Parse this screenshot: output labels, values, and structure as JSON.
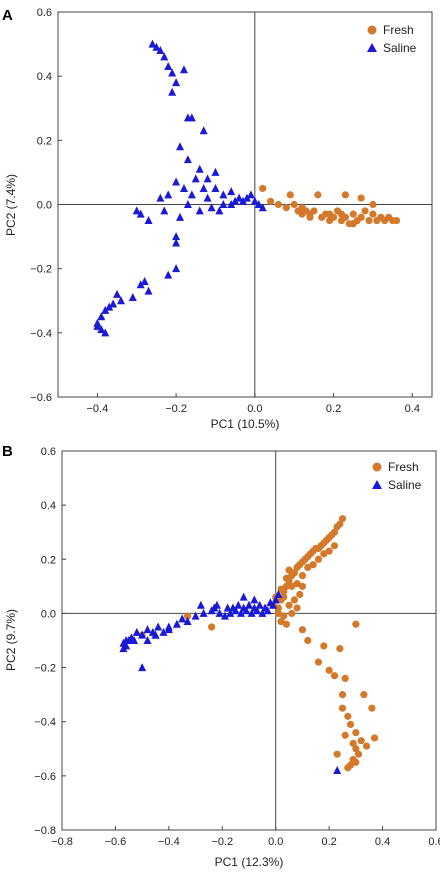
{
  "colors": {
    "fresh": "#d4792a",
    "saline": "#1a1ad6"
  },
  "chart_data": [
    {
      "type": "scatter",
      "panel": "A",
      "xlabel": "PC1 (10.5%)",
      "ylabel": "PC2 (7.4%)",
      "xlim": [
        -0.5,
        0.45
      ],
      "ylim": [
        -0.6,
        0.6
      ],
      "xticks": [
        -0.4,
        -0.2,
        0.0,
        0.2,
        0.4
      ],
      "yticks": [
        -0.6,
        -0.4,
        -0.2,
        0.0,
        0.2,
        0.4,
        0.6
      ],
      "xtick_labels": [
        "−0.4",
        "−0.2",
        "0.0",
        "0.2",
        "0.4"
      ],
      "ytick_labels": [
        "−0.6",
        "−0.4",
        "−0.2",
        "0.0",
        "0.2",
        "0.4",
        "0.6"
      ],
      "legend_position": "top-right",
      "series": [
        {
          "name": "Fresh",
          "marker": "circle",
          "points": [
            [
              0.02,
              0.05
            ],
            [
              0.04,
              0.01
            ],
            [
              0.06,
              0.0
            ],
            [
              0.08,
              -0.01
            ],
            [
              0.09,
              0.03
            ],
            [
              0.1,
              0.0
            ],
            [
              0.11,
              -0.02
            ],
            [
              0.12,
              -0.01
            ],
            [
              0.13,
              -0.02
            ],
            [
              0.14,
              -0.03
            ],
            [
              0.15,
              -0.02
            ],
            [
              0.16,
              0.03
            ],
            [
              0.17,
              -0.04
            ],
            [
              0.18,
              -0.03
            ],
            [
              0.19,
              -0.05
            ],
            [
              0.2,
              -0.04
            ],
            [
              0.21,
              -0.02
            ],
            [
              0.22,
              -0.05
            ],
            [
              0.23,
              -0.04
            ],
            [
              0.24,
              -0.06
            ],
            [
              0.25,
              -0.03
            ],
            [
              0.26,
              -0.05
            ],
            [
              0.27,
              -0.04
            ],
            [
              0.28,
              -0.02
            ],
            [
              0.29,
              -0.05
            ],
            [
              0.3,
              -0.03
            ],
            [
              0.31,
              -0.05
            ],
            [
              0.32,
              -0.04
            ],
            [
              0.33,
              -0.05
            ],
            [
              0.34,
              -0.04
            ],
            [
              0.35,
              -0.05
            ],
            [
              0.36,
              -0.05
            ],
            [
              0.23,
              0.03
            ],
            [
              0.27,
              0.02
            ],
            [
              0.3,
              0.0
            ],
            [
              0.14,
              -0.04
            ],
            [
              0.19,
              -0.03
            ],
            [
              0.25,
              -0.06
            ],
            [
              0.12,
              -0.03
            ],
            [
              0.22,
              -0.03
            ]
          ]
        },
        {
          "name": "Saline",
          "marker": "triangle",
          "points": [
            [
              -0.26,
              0.5
            ],
            [
              -0.25,
              0.49
            ],
            [
              -0.24,
              0.48
            ],
            [
              -0.23,
              0.46
            ],
            [
              -0.22,
              0.43
            ],
            [
              -0.21,
              0.41
            ],
            [
              -0.2,
              0.38
            ],
            [
              -0.18,
              0.42
            ],
            [
              -0.21,
              0.35
            ],
            [
              -0.17,
              0.27
            ],
            [
              -0.16,
              0.27
            ],
            [
              -0.13,
              0.23
            ],
            [
              -0.19,
              0.18
            ],
            [
              -0.17,
              0.14
            ],
            [
              -0.14,
              0.11
            ],
            [
              -0.12,
              0.08
            ],
            [
              -0.1,
              0.1
            ],
            [
              -0.15,
              0.08
            ],
            [
              -0.2,
              0.07
            ],
            [
              -0.24,
              0.02
            ],
            [
              -0.18,
              0.05
            ],
            [
              -0.16,
              0.03
            ],
            [
              -0.12,
              0.02
            ],
            [
              -0.1,
              0.05
            ],
            [
              -0.08,
              0.03
            ],
            [
              -0.06,
              0.04
            ],
            [
              -0.04,
              0.02
            ],
            [
              -0.03,
              0.01
            ],
            [
              -0.02,
              0.02
            ],
            [
              -0.01,
              0.03
            ],
            [
              0.0,
              0.01
            ],
            [
              0.01,
              0.0
            ],
            [
              -0.05,
              0.01
            ],
            [
              -0.08,
              0.0
            ],
            [
              -0.11,
              -0.01
            ],
            [
              -0.14,
              -0.02
            ],
            [
              -0.17,
              0.0
            ],
            [
              -0.19,
              -0.04
            ],
            [
              -0.2,
              -0.1
            ],
            [
              -0.2,
              -0.12
            ],
            [
              -0.23,
              -0.02
            ],
            [
              -0.29,
              -0.03
            ],
            [
              -0.27,
              -0.05
            ],
            [
              -0.3,
              -0.02
            ],
            [
              -0.2,
              -0.2
            ],
            [
              -0.22,
              -0.22
            ],
            [
              -0.27,
              -0.27
            ],
            [
              -0.29,
              -0.25
            ],
            [
              -0.31,
              -0.29
            ],
            [
              -0.34,
              -0.3
            ],
            [
              -0.36,
              -0.31
            ],
            [
              -0.38,
              -0.33
            ],
            [
              -0.39,
              -0.35
            ],
            [
              -0.4,
              -0.37
            ],
            [
              -0.4,
              -0.38
            ],
            [
              -0.39,
              -0.39
            ],
            [
              -0.38,
              -0.4
            ],
            [
              -0.37,
              -0.32
            ],
            [
              -0.35,
              -0.28
            ],
            [
              -0.28,
              -0.24
            ],
            [
              -0.06,
              0.0
            ],
            [
              -0.09,
              -0.02
            ],
            [
              0.02,
              -0.01
            ],
            [
              -0.13,
              0.05
            ],
            [
              -0.22,
              0.03
            ]
          ]
        }
      ]
    },
    {
      "type": "scatter",
      "panel": "B",
      "xlabel": "PC1 (12.3%)",
      "ylabel": "PC2 (9.7%)",
      "xlim": [
        -0.8,
        0.6
      ],
      "ylim": [
        -0.8,
        0.6
      ],
      "xticks": [
        -0.8,
        -0.6,
        -0.4,
        -0.2,
        0.0,
        0.2,
        0.4,
        0.6
      ],
      "yticks": [
        -0.8,
        -0.6,
        -0.4,
        -0.2,
        0.0,
        0.2,
        0.4,
        0.6
      ],
      "xtick_labels": [
        "−0.8",
        "−0.6",
        "−0.4",
        "−0.2",
        "0.0",
        "0.2",
        "0.4",
        "0.6"
      ],
      "ytick_labels": [
        "−0.8",
        "−0.6",
        "−0.4",
        "−0.2",
        "0.0",
        "0.2",
        "0.4",
        "0.6"
      ],
      "legend_position": "top-right",
      "series": [
        {
          "name": "Fresh",
          "marker": "circle",
          "points": [
            [
              0.01,
              0.02
            ],
            [
              0.02,
              0.05
            ],
            [
              0.03,
              0.08
            ],
            [
              0.04,
              0.1
            ],
            [
              0.05,
              0.12
            ],
            [
              0.06,
              0.14
            ],
            [
              0.07,
              0.15
            ],
            [
              0.08,
              0.17
            ],
            [
              0.09,
              0.18
            ],
            [
              0.1,
              0.19
            ],
            [
              0.11,
              0.2
            ],
            [
              0.12,
              0.21
            ],
            [
              0.13,
              0.22
            ],
            [
              0.14,
              0.23
            ],
            [
              0.15,
              0.24
            ],
            [
              0.16,
              0.24
            ],
            [
              0.17,
              0.25
            ],
            [
              0.18,
              0.26
            ],
            [
              0.19,
              0.27
            ],
            [
              0.2,
              0.28
            ],
            [
              0.21,
              0.29
            ],
            [
              0.22,
              0.3
            ],
            [
              0.23,
              0.32
            ],
            [
              0.24,
              0.33
            ],
            [
              0.25,
              0.35
            ],
            [
              0.22,
              0.25
            ],
            [
              0.18,
              0.22
            ],
            [
              0.14,
              0.18
            ],
            [
              0.1,
              0.14
            ],
            [
              0.06,
              0.1
            ],
            [
              0.03,
              0.06
            ],
            [
              0.05,
              0.03
            ],
            [
              0.07,
              0.05
            ],
            [
              0.09,
              0.07
            ],
            [
              0.04,
              0.13
            ],
            [
              0.02,
              0.09
            ],
            [
              0.08,
              0.02
            ],
            [
              0.06,
              0.0
            ],
            [
              0.03,
              -0.01
            ],
            [
              0.01,
              0.0
            ],
            [
              -0.01,
              0.03
            ],
            [
              0.0,
              0.06
            ],
            [
              0.05,
              0.16
            ],
            [
              0.12,
              0.17
            ],
            [
              0.16,
              0.2
            ],
            [
              0.2,
              0.23
            ],
            [
              0.1,
              0.1
            ],
            [
              0.08,
              0.11
            ],
            [
              -0.24,
              -0.05
            ],
            [
              -0.33,
              -0.01
            ],
            [
              -0.5,
              -0.08
            ],
            [
              0.02,
              -0.03
            ],
            [
              0.04,
              -0.04
            ],
            [
              0.1,
              -0.06
            ],
            [
              0.12,
              -0.1
            ],
            [
              0.18,
              -0.12
            ],
            [
              0.24,
              -0.13
            ],
            [
              0.3,
              -0.04
            ],
            [
              0.16,
              -0.18
            ],
            [
              0.2,
              -0.21
            ],
            [
              0.22,
              -0.23
            ],
            [
              0.26,
              -0.24
            ],
            [
              0.25,
              -0.3
            ],
            [
              0.25,
              -0.35
            ],
            [
              0.27,
              -0.38
            ],
            [
              0.28,
              -0.41
            ],
            [
              0.3,
              -0.44
            ],
            [
              0.29,
              -0.48
            ],
            [
              0.3,
              -0.5
            ],
            [
              0.31,
              -0.52
            ],
            [
              0.29,
              -0.54
            ],
            [
              0.28,
              -0.56
            ],
            [
              0.27,
              -0.57
            ],
            [
              0.26,
              -0.45
            ],
            [
              0.32,
              -0.47
            ],
            [
              0.34,
              -0.49
            ],
            [
              0.37,
              -0.46
            ],
            [
              0.36,
              -0.35
            ],
            [
              0.33,
              -0.3
            ],
            [
              0.23,
              -0.52
            ],
            [
              0.3,
              -0.55
            ]
          ]
        },
        {
          "name": "Saline",
          "marker": "triangle",
          "points": [
            [
              -0.57,
              -0.11
            ],
            [
              -0.56,
              -0.12
            ],
            [
              -0.55,
              -0.1
            ],
            [
              -0.54,
              -0.09
            ],
            [
              -0.53,
              -0.1
            ],
            [
              -0.5,
              -0.08
            ],
            [
              -0.48,
              -0.1
            ],
            [
              -0.46,
              -0.07
            ],
            [
              -0.45,
              -0.08
            ],
            [
              -0.42,
              -0.07
            ],
            [
              -0.4,
              -0.05
            ],
            [
              -0.37,
              -0.04
            ],
            [
              -0.33,
              -0.03
            ],
            [
              -0.3,
              -0.01
            ],
            [
              -0.27,
              0.0
            ],
            [
              -0.24,
              0.01
            ],
            [
              -0.18,
              0.02
            ],
            [
              -0.16,
              0.02
            ],
            [
              -0.14,
              0.03
            ],
            [
              -0.12,
              0.02
            ],
            [
              -0.1,
              0.03
            ],
            [
              -0.08,
              0.02
            ],
            [
              -0.06,
              0.03
            ],
            [
              -0.04,
              0.02
            ],
            [
              -0.02,
              0.04
            ],
            [
              0.0,
              0.05
            ],
            [
              -0.01,
              0.03
            ],
            [
              -0.03,
              0.01
            ],
            [
              -0.05,
              0.0
            ],
            [
              -0.07,
              0.01
            ],
            [
              -0.09,
              0.0
            ],
            [
              -0.11,
              0.01
            ],
            [
              -0.13,
              0.0
            ],
            [
              -0.15,
              0.01
            ],
            [
              -0.17,
              0.0
            ],
            [
              -0.19,
              -0.01
            ],
            [
              -0.21,
              0.0
            ],
            [
              -0.23,
              0.02
            ],
            [
              -0.28,
              0.03
            ],
            [
              -0.35,
              -0.02
            ],
            [
              -0.4,
              -0.06
            ],
            [
              -0.44,
              -0.05
            ],
            [
              -0.48,
              -0.06
            ],
            [
              -0.52,
              -0.07
            ],
            [
              -0.56,
              -0.1
            ],
            [
              -0.57,
              -0.13
            ],
            [
              -0.5,
              -0.2
            ],
            [
              -0.45,
              -0.08
            ],
            [
              0.23,
              -0.58
            ],
            [
              0.01,
              0.07
            ],
            [
              -0.08,
              0.05
            ],
            [
              -0.12,
              0.06
            ],
            [
              -0.22,
              0.03
            ]
          ]
        }
      ]
    }
  ]
}
